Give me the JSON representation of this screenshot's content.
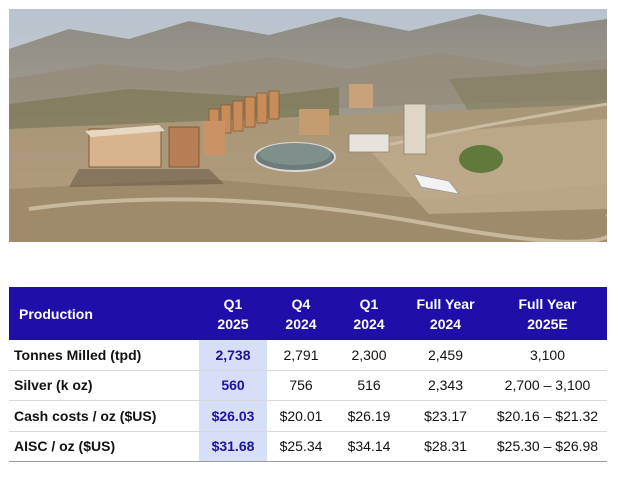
{
  "photo": {
    "description_icon": "mine-photo"
  },
  "table": {
    "headers": [
      {
        "line1": "Production",
        "line2": ""
      },
      {
        "line1": "Q1",
        "line2": "2025"
      },
      {
        "line1": "Q4",
        "line2": "2024"
      },
      {
        "line1": "Q1",
        "line2": "2024"
      },
      {
        "line1": "Full Year",
        "line2": "2024"
      },
      {
        "line1": "Full Year",
        "line2": "2025E"
      }
    ],
    "rows": [
      {
        "label": "Tonnes Milled (tpd)",
        "values": [
          "2,738",
          "2,791",
          "2,300",
          "2,459",
          "3,100"
        ]
      },
      {
        "label": "Silver (k oz)",
        "values": [
          "560",
          "756",
          "516",
          "2,343",
          "2,700 – 3,100"
        ]
      },
      {
        "label": "Cash costs / oz ($US)",
        "values": [
          "$26.03",
          "$20.01",
          "$26.19",
          "$23.17",
          "$20.16 – $21.32"
        ]
      },
      {
        "label": "AISC / oz ($US)",
        "values": [
          "$31.68",
          "$25.34",
          "$34.14",
          "$28.31",
          "$25.30 – $26.98"
        ]
      }
    ]
  },
  "colors": {
    "header_bg": "#1f0fa8",
    "highlight_bg": "#d7def8",
    "highlight_text": "#1a14a0"
  }
}
